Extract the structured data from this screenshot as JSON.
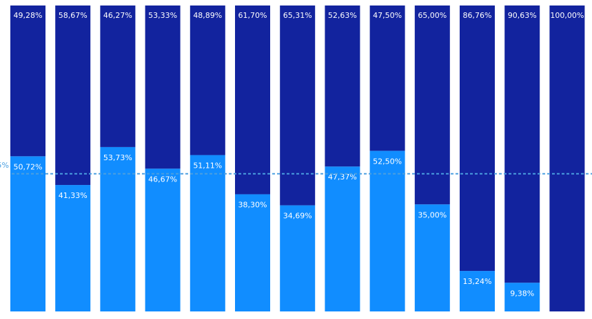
{
  "chart_data": {
    "type": "bar",
    "stacked": true,
    "percent_stacked": true,
    "ylim": [
      0,
      100
    ],
    "grid": false,
    "categories": [
      "",
      "",
      "",
      "",
      "",
      "",
      "",
      "",
      "",
      "",
      "",
      "",
      ""
    ],
    "series": [
      {
        "color": "#118dff",
        "values": [
          50.72,
          41.33,
          53.73,
          46.67,
          51.11,
          38.3,
          34.69,
          47.37,
          52.5,
          35.0,
          13.24,
          9.38,
          0
        ],
        "labels": [
          "50,72%",
          "41,33%",
          "53,73%",
          "46,67%",
          "51,11%",
          "38,30%",
          "34,69%",
          "47,37%",
          "52,50%",
          "35,00%",
          "13,24%",
          "9,38%",
          ""
        ]
      },
      {
        "color": "#12239e",
        "values": [
          49.28,
          58.67,
          46.27,
          53.33,
          48.89,
          61.7,
          65.31,
          52.63,
          47.5,
          65.0,
          86.76,
          90.63,
          100.0
        ],
        "labels": [
          "49,28%",
          "58,67%",
          "46,27%",
          "53,33%",
          "48,89%",
          "61,70%",
          "65,31%",
          "52,63%",
          "47,50%",
          "65,00%",
          "86,76%",
          "90,63%",
          "100,00%"
        ]
      }
    ],
    "reference_line": {
      "value": 45,
      "label": "5%",
      "color": "#4a9fe0",
      "style": "dashed"
    }
  }
}
